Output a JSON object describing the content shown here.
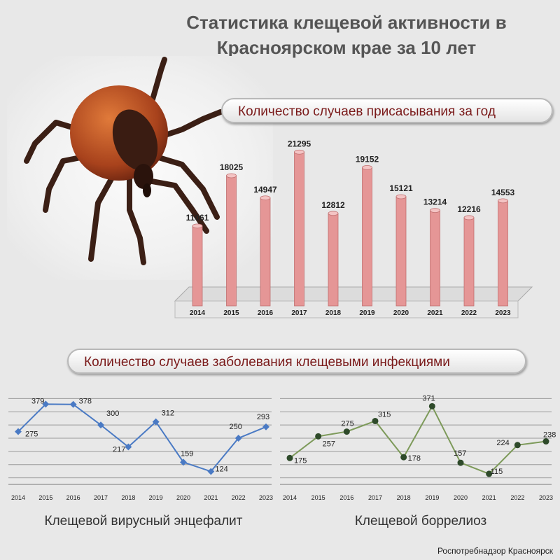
{
  "title": "Статистика клещевой активности в Красноярском крае за 10 лет",
  "photo": {
    "icon": "tick-icon"
  },
  "source": "Роспотребнадзор Красноярск",
  "colors": {
    "bar": "#e59696",
    "bar_top": "#f4c4c4",
    "encephalitis": "#4a7ac4",
    "borreliosis_line": "#7d9a5a",
    "borreliosis_marker": "#2e4a2a",
    "pill_text": "#7a1a1a"
  },
  "chart_data": [
    {
      "type": "bar",
      "title": "Количество случаев присасывания за год",
      "categories": [
        "2014",
        "2015",
        "2016",
        "2017",
        "2018",
        "2019",
        "2020",
        "2021",
        "2022",
        "2023"
      ],
      "values": [
        11061,
        18025,
        14947,
        21295,
        12812,
        19152,
        15121,
        13214,
        12216,
        14553
      ],
      "ylim": [
        0,
        22000
      ],
      "grid": false
    },
    {
      "type": "line",
      "section_title": "Количество случаев заболевания клещевыми инфекциями",
      "title": "Клещевой вирусный энцефалит",
      "categories": [
        "2014",
        "2015",
        "2016",
        "2017",
        "2018",
        "2019",
        "2020",
        "2021",
        "2022",
        "2023"
      ],
      "values": [
        275,
        379,
        378,
        300,
        217,
        312,
        159,
        124,
        250,
        293
      ],
      "ylim": [
        75,
        425
      ],
      "grid": true
    },
    {
      "type": "line",
      "title": "Клещевой боррелиоз",
      "categories": [
        "2014",
        "2015",
        "2016",
        "2017",
        "2018",
        "2019",
        "2020",
        "2021",
        "2022",
        "2023"
      ],
      "values": [
        175,
        257,
        275,
        315,
        178,
        371,
        157,
        115,
        224,
        238
      ],
      "ylim": [
        75,
        425
      ],
      "grid": true
    }
  ]
}
